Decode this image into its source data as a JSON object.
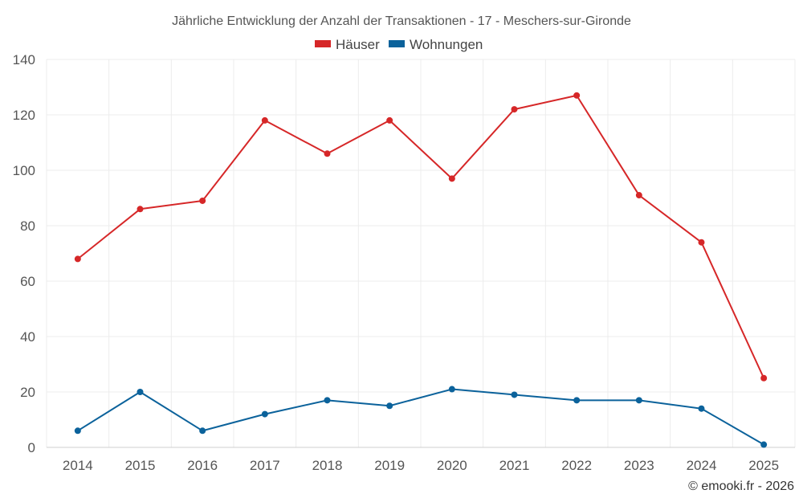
{
  "chart_data": {
    "type": "line",
    "title": "Jährliche Entwicklung der Anzahl der Transaktionen - 17 - Meschers-sur-Gironde",
    "categories": [
      "2014",
      "2015",
      "2016",
      "2017",
      "2018",
      "2019",
      "2020",
      "2021",
      "2022",
      "2023",
      "2024",
      "2025"
    ],
    "series": [
      {
        "name": "Häuser",
        "color": "#d62728",
        "values": [
          68,
          86,
          89,
          118,
          106,
          118,
          97,
          122,
          127,
          91,
          74,
          25
        ]
      },
      {
        "name": "Wohnungen",
        "color": "#0b629b",
        "values": [
          6,
          20,
          6,
          12,
          17,
          15,
          21,
          19,
          17,
          17,
          14,
          1
        ]
      }
    ],
    "ylim": [
      0,
      140
    ],
    "yticks": [
      0,
      20,
      40,
      60,
      80,
      100,
      120,
      140
    ],
    "xlabel": "",
    "ylabel": "",
    "grid": true,
    "legend": "top-center"
  },
  "credit": "© emooki.fr - 2026"
}
